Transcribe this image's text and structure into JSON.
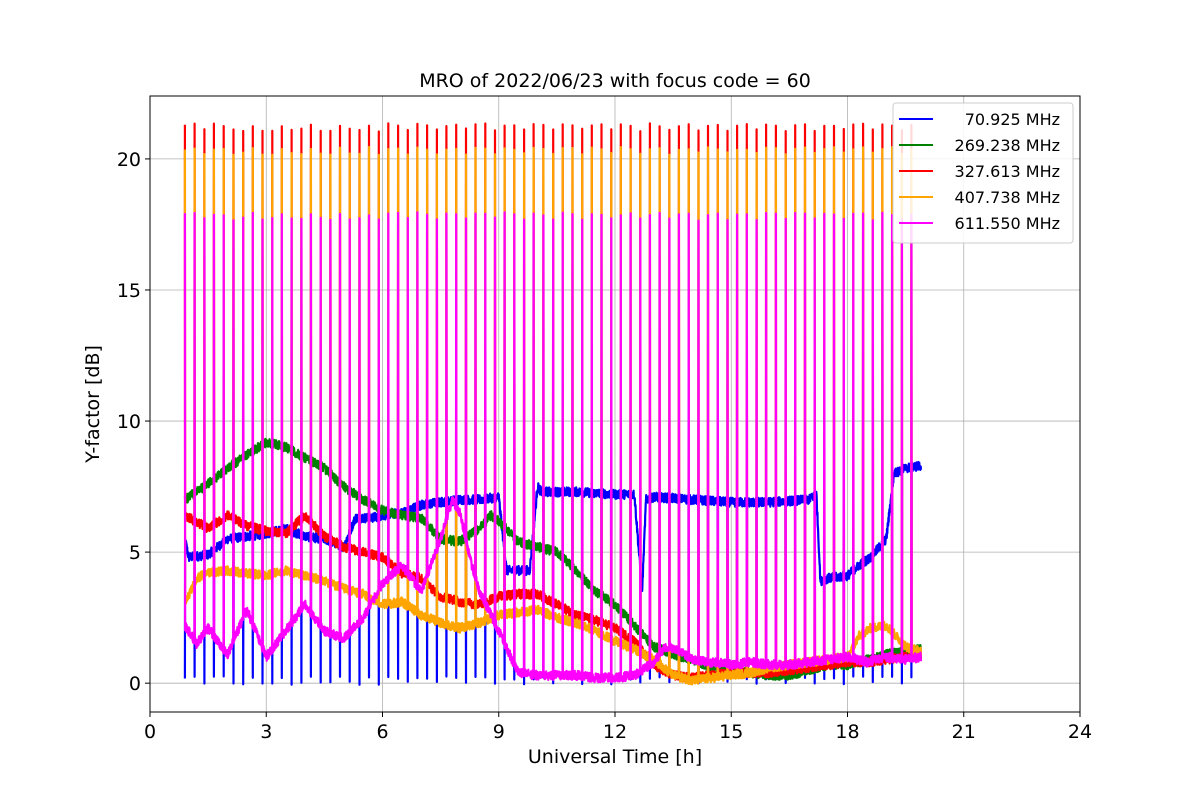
{
  "chart_data": {
    "type": "line",
    "title": "MRO of 2022/06/23 with focus code = 60",
    "xlabel": "Universal Time [h]",
    "ylabel": "Y-factor [dB]",
    "xlim": [
      0,
      24
    ],
    "ylim": [
      -1.1,
      22.4
    ],
    "xticks": [
      0,
      3,
      6,
      9,
      12,
      15,
      18,
      21,
      24
    ],
    "yticks": [
      0,
      5,
      10,
      15,
      20
    ],
    "grid": true,
    "legend_position": "top-right",
    "data_start_hour": 0.9,
    "data_end_hour": 19.9,
    "calibration_period_hours": 0.25,
    "series": [
      {
        "name": "70.925 MHz",
        "color": "#0000ff",
        "spike_peak": 0.2,
        "x": [
          0.9,
          1.0,
          1.5,
          2.0,
          2.5,
          3.0,
          3.5,
          4.0,
          4.5,
          5.0,
          5.3,
          5.7,
          6.0,
          6.5,
          7.0,
          7.5,
          8.0,
          8.5,
          9.0,
          9.2,
          9.3,
          9.8,
          10.0,
          10.1,
          10.5,
          11.0,
          12.0,
          12.5,
          12.7,
          12.8,
          13.0,
          14.0,
          15.0,
          16.0,
          17.0,
          17.2,
          17.3,
          17.5,
          18.0,
          18.3,
          18.6,
          19.0,
          19.2,
          19.5,
          19.9
        ],
        "y": [
          5.5,
          4.8,
          4.9,
          5.5,
          5.6,
          5.7,
          5.9,
          5.6,
          5.5,
          5.2,
          6.3,
          6.3,
          6.4,
          6.5,
          6.8,
          6.9,
          7.0,
          7.0,
          7.1,
          4.3,
          4.3,
          4.3,
          7.5,
          7.3,
          7.3,
          7.3,
          7.2,
          7.2,
          3.5,
          7.0,
          7.1,
          7.0,
          6.9,
          6.9,
          7.0,
          7.2,
          3.9,
          4.0,
          4.1,
          4.5,
          4.8,
          5.5,
          8.0,
          8.2,
          8.3
        ]
      },
      {
        "name": "269.238 MHz",
        "color": "#008000",
        "x": [
          0.9,
          1.5,
          2.0,
          2.5,
          3.0,
          3.5,
          4.0,
          4.5,
          5.0,
          5.5,
          6.0,
          6.5,
          7.0,
          7.5,
          8.0,
          8.5,
          8.8,
          9.0,
          9.5,
          10.0,
          10.5,
          11.0,
          11.5,
          12.0,
          12.5,
          13.0,
          13.5,
          14.0,
          14.5,
          15.0,
          15.5,
          16.0,
          16.5,
          17.0,
          17.5,
          18.0,
          18.5,
          19.0,
          19.5,
          19.9
        ],
        "y": [
          7.0,
          7.6,
          8.2,
          8.7,
          9.2,
          9.0,
          8.6,
          8.2,
          7.5,
          7.0,
          6.6,
          6.4,
          6.3,
          5.5,
          5.4,
          5.9,
          6.4,
          6.2,
          5.4,
          5.2,
          5.0,
          4.3,
          3.5,
          3.0,
          2.2,
          1.4,
          1.1,
          0.9,
          0.6,
          0.5,
          0.4,
          0.3,
          0.3,
          0.5,
          0.7,
          0.7,
          0.9,
          1.1,
          1.2,
          1.3
        ]
      },
      {
        "name": "327.613 MHz",
        "color": "#ff0000",
        "spike_peak": 21.3,
        "x": [
          0.9,
          1.5,
          2.0,
          2.5,
          3.0,
          3.5,
          4.0,
          4.5,
          5.0,
          5.5,
          6.0,
          6.5,
          7.0,
          7.5,
          8.0,
          8.5,
          9.0,
          9.5,
          10.0,
          10.5,
          11.0,
          11.5,
          12.0,
          12.5,
          13.0,
          13.5,
          14.0,
          14.5,
          15.0,
          15.5,
          16.0,
          16.5,
          17.0,
          17.5,
          18.0,
          18.5,
          19.0,
          19.5,
          19.9
        ],
        "y": [
          6.4,
          5.9,
          6.4,
          6.0,
          5.8,
          5.7,
          6.4,
          5.6,
          5.2,
          5.0,
          4.8,
          4.2,
          4.0,
          3.3,
          3.1,
          3.0,
          3.3,
          3.4,
          3.4,
          3.0,
          2.6,
          2.4,
          2.1,
          1.6,
          0.7,
          0.3,
          0.2,
          0.3,
          0.4,
          0.4,
          0.4,
          0.5,
          0.6,
          0.7,
          0.8,
          0.8,
          0.9,
          1.0,
          1.0
        ]
      },
      {
        "name": "407.738 MHz",
        "color": "#ffa500",
        "spike_peak": 20.4,
        "x": [
          0.9,
          1.2,
          1.5,
          2.0,
          2.5,
          3.0,
          3.5,
          4.0,
          4.5,
          5.0,
          5.5,
          6.0,
          6.5,
          7.0,
          7.5,
          8.0,
          8.5,
          9.0,
          9.5,
          10.0,
          10.5,
          11.0,
          11.5,
          12.0,
          12.5,
          13.0,
          13.5,
          14.0,
          14.5,
          15.0,
          15.5,
          16.0,
          16.5,
          17.0,
          17.5,
          18.0,
          18.3,
          18.6,
          19.0,
          19.5,
          19.9
        ],
        "y": [
          3.0,
          4.0,
          4.2,
          4.3,
          4.2,
          4.1,
          4.3,
          4.1,
          3.9,
          3.6,
          3.4,
          3.0,
          3.1,
          2.6,
          2.3,
          2.1,
          2.3,
          2.6,
          2.7,
          2.8,
          2.5,
          2.3,
          2.0,
          1.6,
          1.3,
          0.9,
          0.3,
          0.1,
          0.2,
          0.3,
          0.4,
          0.6,
          0.7,
          0.8,
          0.9,
          1.0,
          1.8,
          2.1,
          2.2,
          1.4,
          1.2
        ]
      },
      {
        "name": "611.550 MHz",
        "color": "#ff00ff",
        "spike_peak": 17.9,
        "x": [
          0.9,
          1.2,
          1.5,
          2.0,
          2.5,
          3.0,
          3.5,
          4.0,
          4.5,
          5.0,
          5.5,
          6.0,
          6.5,
          7.0,
          7.5,
          7.8,
          8.0,
          8.3,
          8.5,
          9.0,
          9.5,
          10.0,
          10.5,
          11.0,
          11.5,
          12.0,
          12.5,
          13.0,
          13.3,
          13.6,
          14.0,
          14.5,
          15.0,
          15.5,
          16.0,
          16.5,
          17.0,
          17.5,
          18.0,
          18.5,
          19.0,
          19.5,
          19.9
        ],
        "y": [
          2.2,
          1.5,
          2.1,
          1.1,
          2.8,
          1.0,
          2.0,
          3.0,
          2.0,
          1.7,
          2.5,
          3.8,
          4.5,
          3.5,
          5.5,
          7.0,
          6.5,
          4.5,
          3.5,
          2.0,
          0.4,
          0.3,
          0.3,
          0.3,
          0.2,
          0.2,
          0.3,
          0.8,
          1.4,
          1.3,
          0.9,
          0.8,
          0.7,
          0.8,
          0.7,
          0.7,
          0.8,
          0.9,
          1.0,
          0.8,
          1.0,
          0.9,
          1.0
        ]
      }
    ]
  }
}
